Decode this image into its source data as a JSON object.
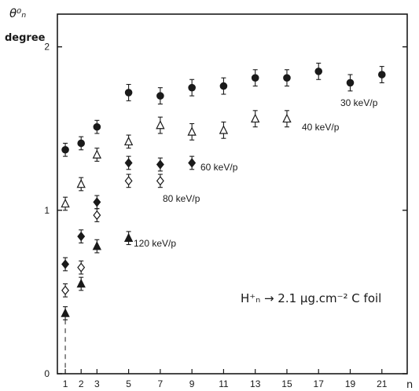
{
  "chart_data": {
    "type": "scatter",
    "ylabel": "θ⁰ₙ",
    "ylabel_unit": "degree",
    "xlabel": "n",
    "xticks": [
      1,
      2,
      3,
      5,
      7,
      9,
      11,
      13,
      15,
      17,
      19,
      21
    ],
    "yticks": [
      0,
      1,
      2
    ],
    "xlim": [
      0.5,
      22.6
    ],
    "ylim": [
      0,
      2.2
    ],
    "grid": false,
    "annotation": "H⁺ₙ → 2.1 μg.cm⁻² C foil",
    "series": [
      {
        "name": "30 keV/p",
        "marker": "filled-circle",
        "x": [
          1,
          2,
          3,
          5,
          7,
          9,
          11,
          13,
          15,
          17,
          19,
          21
        ],
        "y": [
          1.37,
          1.41,
          1.51,
          1.72,
          1.7,
          1.75,
          1.76,
          1.81,
          1.81,
          1.85,
          1.78,
          1.83
        ],
        "err": [
          0.04,
          0.04,
          0.04,
          0.05,
          0.05,
          0.05,
          0.05,
          0.05,
          0.05,
          0.05,
          0.05,
          0.05
        ]
      },
      {
        "name": "40 keV/p",
        "marker": "open-triangle",
        "x": [
          1,
          2,
          3,
          5,
          7,
          9,
          11,
          13,
          15
        ],
        "y": [
          1.04,
          1.16,
          1.34,
          1.42,
          1.52,
          1.48,
          1.49,
          1.56,
          1.56
        ],
        "err": [
          0.04,
          0.04,
          0.04,
          0.04,
          0.05,
          0.05,
          0.05,
          0.05,
          0.05
        ]
      },
      {
        "name": "60 keV/p",
        "marker": "filled-diamond",
        "x": [
          1,
          2,
          3,
          5,
          7,
          9
        ],
        "y": [
          0.67,
          0.84,
          1.05,
          1.29,
          1.28,
          1.29
        ],
        "err": [
          0.04,
          0.04,
          0.04,
          0.04,
          0.04,
          0.04
        ]
      },
      {
        "name": "80 keV/p",
        "marker": "open-diamond",
        "x": [
          1,
          2,
          3,
          5,
          7
        ],
        "y": [
          0.51,
          0.65,
          0.97,
          1.18,
          1.18
        ],
        "err": [
          0.04,
          0.04,
          0.04,
          0.04,
          0.04
        ]
      },
      {
        "name": "120 keV/p",
        "marker": "filled-triangle",
        "x": [
          1,
          2,
          3,
          5
        ],
        "y": [
          0.37,
          0.55,
          0.78,
          0.83
        ],
        "err": [
          0.04,
          0.04,
          0.04,
          0.04
        ]
      }
    ],
    "series_labels": [
      "30 keV/p",
      "40 keV/p",
      "60 keV/p",
      "80 keV/p",
      "120 keV/p"
    ]
  }
}
